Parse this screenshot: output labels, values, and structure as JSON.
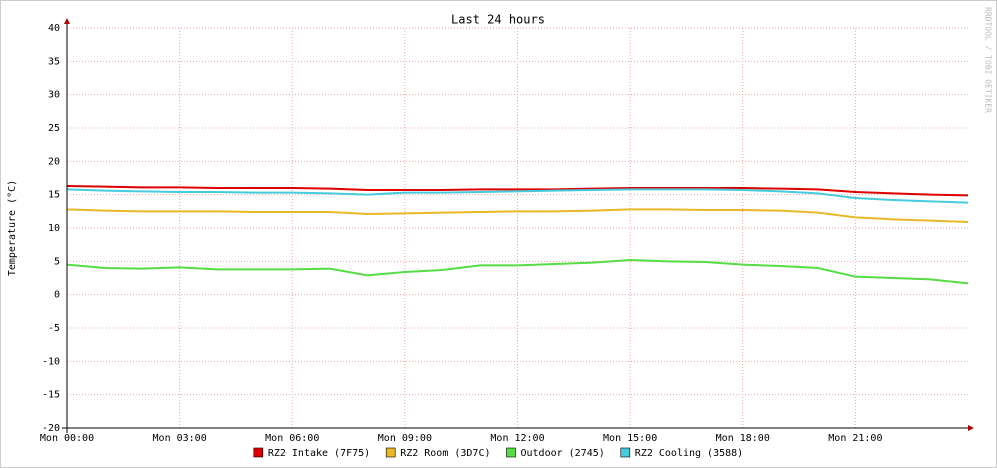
{
  "chart_data": {
    "type": "line",
    "title": "Last 24 hours",
    "y_label": "Temperature (°C)",
    "watermark": "RRDTOOL / TOBI OETIKER",
    "x": [
      0,
      1,
      2,
      3,
      4,
      5,
      6,
      7,
      8,
      9,
      10,
      11,
      12,
      13,
      14,
      15,
      16,
      17,
      18,
      19,
      20,
      21,
      22,
      23,
      24
    ],
    "xlim": [
      0,
      24
    ],
    "xticks": [
      {
        "value": 0,
        "label": "Mon 00:00"
      },
      {
        "value": 3,
        "label": "Mon 03:00"
      },
      {
        "value": 6,
        "label": "Mon 06:00"
      },
      {
        "value": 9,
        "label": "Mon 09:00"
      },
      {
        "value": 12,
        "label": "Mon 12:00"
      },
      {
        "value": 15,
        "label": "Mon 15:00"
      },
      {
        "value": 18,
        "label": "Mon 18:00"
      },
      {
        "value": 21,
        "label": "Mon 21:00"
      }
    ],
    "ylim": [
      -20,
      40
    ],
    "yticks": [
      -20,
      -15,
      -10,
      -5,
      0,
      5,
      10,
      15,
      20,
      25,
      30,
      35,
      40
    ],
    "grid": true,
    "series": [
      {
        "name": "RZ2 Intake (7F75)",
        "color": "#dd0000",
        "values": [
          16.3,
          16.2,
          16.1,
          16.1,
          16.0,
          16.0,
          16.0,
          15.9,
          15.7,
          15.7,
          15.7,
          15.8,
          15.8,
          15.8,
          15.9,
          16.0,
          16.0,
          16.0,
          16.0,
          15.9,
          15.8,
          15.4,
          15.2,
          15.0,
          14.9
        ]
      },
      {
        "name": "RZ2 Room (3D7C)",
        "color": "#e8b828",
        "values": [
          12.8,
          12.6,
          12.5,
          12.5,
          12.5,
          12.4,
          12.4,
          12.4,
          12.1,
          12.2,
          12.3,
          12.4,
          12.5,
          12.5,
          12.6,
          12.8,
          12.8,
          12.7,
          12.7,
          12.6,
          12.3,
          11.6,
          11.3,
          11.1,
          10.9
        ]
      },
      {
        "name": "Outdoor (2745)",
        "color": "#55dd44",
        "values": [
          4.5,
          4.0,
          3.9,
          4.1,
          3.8,
          3.8,
          3.8,
          3.9,
          2.9,
          3.4,
          3.7,
          4.4,
          4.4,
          4.6,
          4.8,
          5.2,
          5.0,
          4.9,
          4.5,
          4.3,
          4.0,
          2.7,
          2.5,
          2.3,
          1.7
        ]
      },
      {
        "name": "RZ2 Cooling (3588)",
        "color": "#44ccdd",
        "values": [
          15.8,
          15.6,
          15.5,
          15.4,
          15.4,
          15.3,
          15.3,
          15.2,
          15.0,
          15.3,
          15.3,
          15.4,
          15.5,
          15.6,
          15.7,
          15.8,
          15.8,
          15.8,
          15.7,
          15.5,
          15.2,
          14.5,
          14.2,
          14.0,
          13.8
        ]
      }
    ]
  }
}
